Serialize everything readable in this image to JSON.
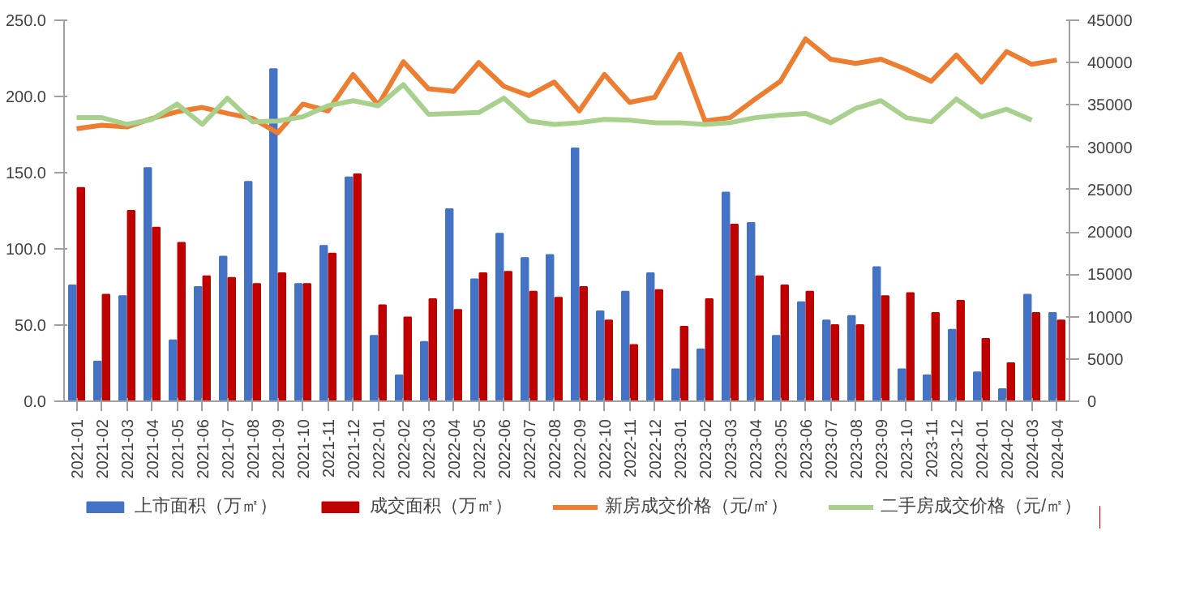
{
  "chart_data": {
    "type": "bar",
    "categories": [
      "2021-01",
      "2021-02",
      "2021-03",
      "2021-04",
      "2021-05",
      "2021-06",
      "2021-07",
      "2021-08",
      "2021-09",
      "2021-10",
      "2021-11",
      "2021-12",
      "2022-01",
      "2022-02",
      "2022-03",
      "2022-04",
      "2022-05",
      "2022-06",
      "2022-07",
      "2022-08",
      "2022-09",
      "2022-10",
      "2022-11",
      "2022-12",
      "2023-01",
      "2023-02",
      "2023-03",
      "2023-04",
      "2023-05",
      "2023-06",
      "2023-07",
      "2023-08",
      "2023-09",
      "2023-10",
      "2023-11",
      "2023-12",
      "2024-01",
      "2024-02",
      "2024-03",
      "2024-04"
    ],
    "series": [
      {
        "name": "上市面积（万㎡）",
        "type": "bar",
        "color": "#4472c4",
        "values": [
          76,
          26,
          69,
          153,
          40,
          75,
          95,
          144,
          218,
          77,
          102,
          147,
          43,
          17,
          39,
          126,
          80,
          110,
          94,
          96,
          166,
          59,
          72,
          84,
          21,
          34,
          137,
          117,
          43,
          65,
          53,
          56,
          88,
          21,
          17,
          47,
          19,
          8,
          70,
          58
        ]
      },
      {
        "name": "成交面积（万㎡）",
        "type": "bar",
        "color": "#c00000",
        "values": [
          140,
          70,
          125,
          114,
          104,
          82,
          81,
          77,
          84,
          77,
          97,
          149,
          63,
          55,
          67,
          60,
          84,
          85,
          72,
          68,
          75,
          53,
          37,
          73,
          49,
          67,
          116,
          82,
          76,
          72,
          50,
          50,
          69,
          71,
          58,
          66,
          41,
          25,
          58,
          53
        ]
      },
      {
        "name": "新房成交价格（元/㎡）",
        "type": "line",
        "axis": "y2",
        "color": "#ed7d31",
        "values": [
          32200,
          32600,
          32400,
          33400,
          34200,
          34700,
          34000,
          33400,
          31700,
          35100,
          34300,
          38600,
          35000,
          40100,
          36900,
          36600,
          40000,
          37200,
          36100,
          37700,
          34300,
          38600,
          35300,
          35900,
          41000,
          33100,
          33500,
          35700,
          37800,
          42800,
          40400,
          39900,
          40400,
          39200,
          37800,
          40900,
          37700,
          41300,
          39800,
          40300
        ]
      },
      {
        "name": "二手房成交价格（元/㎡）",
        "type": "line",
        "axis": "y2",
        "color": "#a9d18e",
        "values": [
          33500,
          33500,
          32700,
          33300,
          35100,
          32700,
          35800,
          33000,
          33100,
          33600,
          34900,
          35500,
          34900,
          37400,
          33900,
          34000,
          34100,
          35800,
          33100,
          32700,
          32900,
          33300,
          33200,
          32900,
          32900,
          32700,
          32900,
          33500,
          33800,
          34000,
          32900,
          34600,
          35500,
          33500,
          33000,
          35700,
          33600,
          34500,
          33200,
          null
        ]
      }
    ],
    "ylim": [
      0,
      250
    ],
    "yticks": [
      {
        "value": 0,
        "label": "0.0"
      },
      {
        "value": 50,
        "label": "50.0"
      },
      {
        "value": 100,
        "label": "100.0"
      },
      {
        "value": 150,
        "label": "150.0"
      },
      {
        "value": 200,
        "label": "200.0"
      },
      {
        "value": 250,
        "label": "250.0"
      }
    ],
    "y2lim": [
      0,
      45000
    ],
    "y2ticks": [
      0,
      5000,
      10000,
      15000,
      20000,
      25000,
      30000,
      35000,
      40000,
      45000
    ],
    "grid": false,
    "legend": "bottom"
  }
}
